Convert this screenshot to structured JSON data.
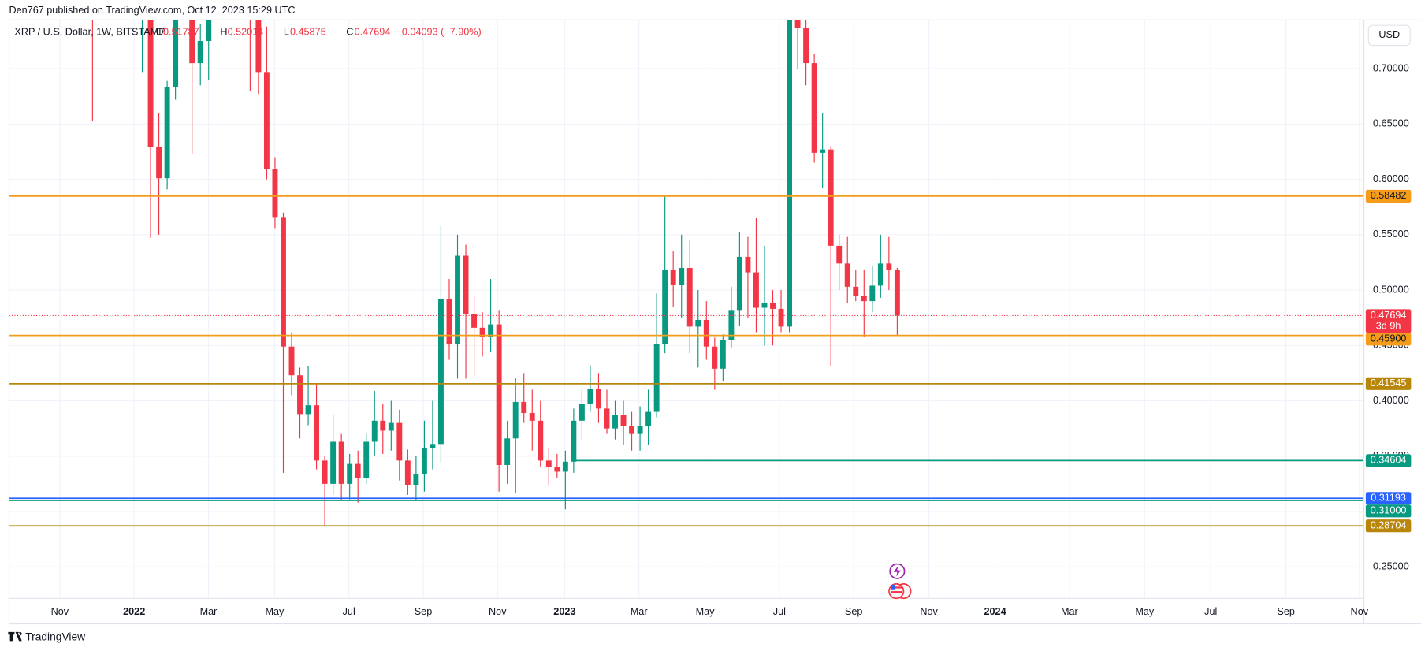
{
  "header": {
    "published": "Den767 published on TradingView.com, Oct 12, 2023 15:29 UTC",
    "symbol": "XRP / U.S. Dollar, 1W, BITSTAMP",
    "ohlc_labels": [
      "O",
      "H",
      "L",
      "C"
    ],
    "change": "−0.04093 (−7.90%)",
    "currency": "USD"
  },
  "footer": {
    "brand": "TradingView"
  },
  "chart_data": {
    "type": "candlestick",
    "up_color": "#089981",
    "down_color": "#f23645",
    "open": [
      0.99,
      0.83,
      0.8,
      0.84,
      0.92,
      0.83,
      0.77,
      0.78,
      0.629,
      0.601,
      0.683,
      0.82,
      0.78,
      0.705,
      0.725,
      0.78,
      0.84,
      0.8,
      0.84,
      0.8,
      0.76,
      0.697,
      0.609,
      0.566,
      0.449,
      0.423,
      0.388,
      0.396,
      0.346,
      0.325,
      0.363,
      0.325,
      0.343,
      0.33,
      0.363,
      0.382,
      0.373,
      0.38,
      0.346,
      0.324,
      0.334,
      0.357,
      0.361,
      0.492,
      0.451,
      0.531,
      0.478,
      0.466,
      0.458,
      0.469,
      0.342,
      0.366,
      0.399,
      0.389,
      0.382,
      0.346,
      0.34,
      0.336,
      0.345,
      0.382,
      0.397,
      0.411,
      0.393,
      0.375,
      0.387,
      0.377,
      0.37,
      0.377,
      0.39,
      0.451,
      0.518,
      0.505,
      0.52,
      0.467,
      0.473,
      0.449,
      0.429,
      0.455,
      0.482,
      0.53,
      0.516,
      0.484,
      0.488,
      0.483,
      0.467,
      0.75,
      0.737,
      0.705,
      0.624,
      0.627,
      0.54,
      0.524,
      0.503,
      0.495,
      0.49,
      0.504,
      0.524,
      0.51787
    ],
    "high": [
      1.02,
      0.9,
      0.88,
      1.0,
      0.94,
      0.86,
      0.8,
      0.79,
      0.66,
      0.689,
      0.91,
      0.86,
      0.8,
      0.74,
      0.8,
      0.86,
      0.85,
      0.92,
      0.85,
      0.82,
      0.77,
      0.738,
      0.62,
      0.57,
      0.462,
      0.43,
      0.431,
      0.415,
      0.35,
      0.387,
      0.37,
      0.352,
      0.355,
      0.37,
      0.409,
      0.397,
      0.4,
      0.392,
      0.356,
      0.35,
      0.382,
      0.4,
      0.558,
      0.51,
      0.55,
      0.541,
      0.495,
      0.48,
      0.51,
      0.482,
      0.382,
      0.421,
      0.425,
      0.41,
      0.4,
      0.357,
      0.352,
      0.355,
      0.393,
      0.41,
      0.432,
      0.425,
      0.41,
      0.4,
      0.4,
      0.39,
      0.395,
      0.41,
      0.497,
      0.585,
      0.535,
      0.55,
      0.545,
      0.5,
      0.49,
      0.457,
      0.46,
      0.503,
      0.552,
      0.548,
      0.565,
      0.54,
      0.5,
      0.5,
      0.938,
      0.86,
      0.745,
      0.713,
      0.66,
      0.63,
      0.55,
      0.548,
      0.518,
      0.518,
      0.522,
      0.55,
      0.548,
      0.52014
    ],
    "low": [
      0.653,
      0.77,
      0.76,
      0.82,
      0.82,
      0.75,
      0.697,
      0.547,
      0.55,
      0.591,
      0.672,
      0.76,
      0.623,
      0.685,
      0.69,
      0.76,
      0.78,
      0.79,
      0.76,
      0.68,
      0.677,
      0.6,
      0.556,
      0.335,
      0.405,
      0.366,
      0.378,
      0.338,
      0.287,
      0.315,
      0.31,
      0.311,
      0.308,
      0.325,
      0.35,
      0.352,
      0.355,
      0.328,
      0.315,
      0.31,
      0.318,
      0.338,
      0.344,
      0.437,
      0.42,
      0.42,
      0.422,
      0.44,
      0.444,
      0.318,
      0.325,
      0.317,
      0.38,
      0.355,
      0.34,
      0.323,
      0.33,
      0.302,
      0.335,
      0.365,
      0.39,
      0.38,
      0.37,
      0.365,
      0.36,
      0.355,
      0.355,
      0.36,
      0.385,
      0.443,
      0.485,
      0.475,
      0.443,
      0.43,
      0.437,
      0.41,
      0.418,
      0.448,
      0.468,
      0.475,
      0.462,
      0.45,
      0.45,
      0.462,
      0.462,
      0.7,
      0.685,
      0.615,
      0.592,
      0.431,
      0.5,
      0.488,
      0.49,
      0.458,
      0.48,
      0.493,
      0.5,
      0.45875
    ],
    "close": [
      0.83,
      0.8,
      0.84,
      0.92,
      0.83,
      0.77,
      0.78,
      0.629,
      0.601,
      0.683,
      0.82,
      0.78,
      0.705,
      0.725,
      0.78,
      0.84,
      0.8,
      0.84,
      0.8,
      0.76,
      0.697,
      0.609,
      0.566,
      0.449,
      0.423,
      0.388,
      0.396,
      0.346,
      0.325,
      0.363,
      0.325,
      0.343,
      0.33,
      0.363,
      0.382,
      0.373,
      0.38,
      0.346,
      0.324,
      0.334,
      0.357,
      0.361,
      0.492,
      0.451,
      0.531,
      0.478,
      0.466,
      0.458,
      0.469,
      0.342,
      0.366,
      0.399,
      0.389,
      0.382,
      0.346,
      0.34,
      0.336,
      0.345,
      0.382,
      0.397,
      0.411,
      0.393,
      0.375,
      0.387,
      0.377,
      0.37,
      0.377,
      0.39,
      0.451,
      0.518,
      0.505,
      0.52,
      0.467,
      0.473,
      0.449,
      0.429,
      0.455,
      0.482,
      0.53,
      0.516,
      0.484,
      0.488,
      0.483,
      0.467,
      0.75,
      0.737,
      0.705,
      0.624,
      0.627,
      0.54,
      0.524,
      0.503,
      0.495,
      0.49,
      0.504,
      0.524,
      0.51787,
      0.47694
    ],
    "xticks": [
      "Nov",
      "2022",
      "Mar",
      "May",
      "Jul",
      "Sep",
      "Nov",
      "2023",
      "Mar",
      "May",
      "Jul",
      "Sep",
      "Nov",
      "2024",
      "Mar",
      "May",
      "Jul",
      "Sep",
      "Nov"
    ],
    "ylim": [
      0.2215,
      0.744
    ],
    "yticks": [
      {
        "value": 0.25,
        "label": "0.25000"
      },
      {
        "value": 0.3,
        "label": "0.30000"
      },
      {
        "value": 0.35,
        "label": "0.35000"
      },
      {
        "value": 0.4,
        "label": "0.40000"
      },
      {
        "value": 0.45,
        "label": "0.45000"
      },
      {
        "value": 0.5,
        "label": "0.50000"
      },
      {
        "value": 0.55,
        "label": "0.55000"
      },
      {
        "value": 0.6,
        "label": "0.60000"
      },
      {
        "value": 0.65,
        "label": "0.65000"
      },
      {
        "value": 0.7,
        "label": "0.70000"
      }
    ],
    "grid": true,
    "levels": [
      {
        "value": 0.58482,
        "color": "#f59c1a"
      },
      {
        "value": 0.459,
        "label": "0.45900",
        "color": "#f59c1a"
      },
      {
        "value": 0.41545,
        "color": "#b8860b"
      },
      {
        "value": 0.34604,
        "color": "#089981"
      },
      {
        "value": 0.31193,
        "color": "#2962ff"
      },
      {
        "value": 0.31,
        "label": "0.31000",
        "color": "#089981"
      },
      {
        "value": 0.28704,
        "color": "#b8860b"
      }
    ],
    "countdown": "3d 9h"
  }
}
